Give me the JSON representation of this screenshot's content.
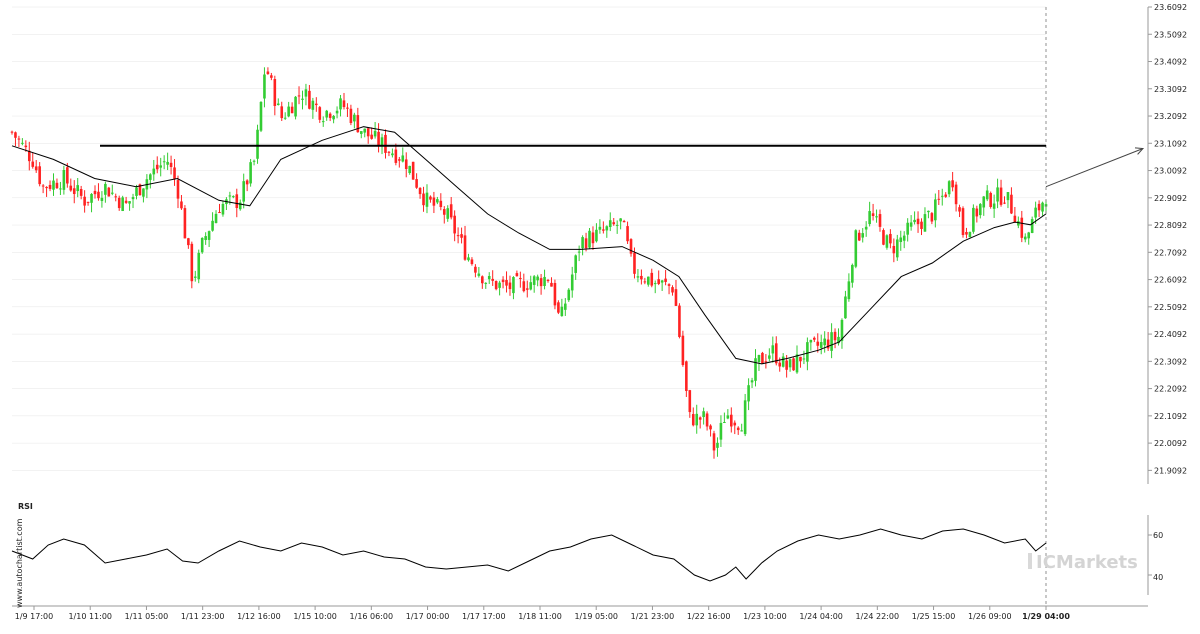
{
  "chart_data": {
    "type": "candlestick",
    "price_axis": {
      "min": 21.8592,
      "max": 23.6092,
      "ticks": [
        "23.6092",
        "23.5092",
        "23.4092",
        "23.3092",
        "23.2092",
        "23.1092",
        "23.0092",
        "22.9092",
        "22.8092",
        "22.7092",
        "22.6092",
        "22.5092",
        "22.4092",
        "22.3092",
        "22.2092",
        "22.1092",
        "22.0092",
        "21.9092"
      ]
    },
    "x_tick_labels": [
      "1/9 17:00",
      "1/10 11:00",
      "1/11 05:00",
      "1/11 23:00",
      "1/12 16:00",
      "1/15 10:00",
      "1/16 06:00",
      "1/17 00:00",
      "1/17 17:00",
      "1/18 11:00",
      "1/19 05:00",
      "1/21 23:00",
      "1/22 16:00",
      "1/23 10:00",
      "1/24 04:00",
      "1/24 22:00",
      "1/25 15:00",
      "1/26 09:00",
      "1/29 04:00"
    ],
    "current_time_label": "1/29 04:00",
    "resistance_level": 23.1,
    "projection": {
      "from": 22.95,
      "to": 23.09
    },
    "price_path": [
      [
        0,
        23.15
      ],
      [
        0.02,
        23.05
      ],
      [
        0.03,
        22.95
      ],
      [
        0.05,
        22.98
      ],
      [
        0.07,
        22.9
      ],
      [
        0.09,
        22.95
      ],
      [
        0.11,
        22.88
      ],
      [
        0.13,
        22.98
      ],
      [
        0.15,
        23.05
      ],
      [
        0.16,
        22.95
      ],
      [
        0.175,
        22.6
      ],
      [
        0.185,
        22.75
      ],
      [
        0.2,
        22.88
      ],
      [
        0.22,
        22.9
      ],
      [
        0.235,
        23.05
      ],
      [
        0.245,
        23.4
      ],
      [
        0.26,
        23.2
      ],
      [
        0.28,
        23.3
      ],
      [
        0.3,
        23.22
      ],
      [
        0.32,
        23.25
      ],
      [
        0.34,
        23.15
      ],
      [
        0.36,
        23.1
      ],
      [
        0.38,
        23.05
      ],
      [
        0.4,
        22.9
      ],
      [
        0.42,
        22.85
      ],
      [
        0.44,
        22.7
      ],
      [
        0.46,
        22.6
      ],
      [
        0.48,
        22.58
      ],
      [
        0.5,
        22.6
      ],
      [
        0.52,
        22.62
      ],
      [
        0.53,
        22.45
      ],
      [
        0.55,
        22.75
      ],
      [
        0.57,
        22.78
      ],
      [
        0.59,
        22.82
      ],
      [
        0.6,
        22.65
      ],
      [
        0.62,
        22.6
      ],
      [
        0.64,
        22.58
      ],
      [
        0.655,
        22.1
      ],
      [
        0.67,
        22.1
      ],
      [
        0.68,
        21.98
      ],
      [
        0.69,
        22.12
      ],
      [
        0.705,
        22.08
      ],
      [
        0.72,
        22.3
      ],
      [
        0.735,
        22.35
      ],
      [
        0.75,
        22.28
      ],
      [
        0.77,
        22.35
      ],
      [
        0.8,
        22.4
      ],
      [
        0.815,
        22.75
      ],
      [
        0.83,
        22.85
      ],
      [
        0.85,
        22.72
      ],
      [
        0.87,
        22.8
      ],
      [
        0.89,
        22.85
      ],
      [
        0.91,
        22.98
      ],
      [
        0.92,
        22.78
      ],
      [
        0.94,
        22.9
      ],
      [
        0.96,
        22.92
      ],
      [
        0.97,
        22.85
      ],
      [
        0.98,
        22.75
      ],
      [
        0.99,
        22.85
      ],
      [
        1.0,
        22.92
      ]
    ],
    "moving_average": [
      [
        0,
        23.1
      ],
      [
        0.04,
        23.05
      ],
      [
        0.08,
        22.98
      ],
      [
        0.12,
        22.95
      ],
      [
        0.16,
        22.98
      ],
      [
        0.2,
        22.9
      ],
      [
        0.23,
        22.88
      ],
      [
        0.26,
        23.05
      ],
      [
        0.3,
        23.12
      ],
      [
        0.34,
        23.17
      ],
      [
        0.37,
        23.15
      ],
      [
        0.4,
        23.05
      ],
      [
        0.43,
        22.95
      ],
      [
        0.46,
        22.85
      ],
      [
        0.49,
        22.78
      ],
      [
        0.52,
        22.72
      ],
      [
        0.55,
        22.72
      ],
      [
        0.59,
        22.73
      ],
      [
        0.62,
        22.68
      ],
      [
        0.645,
        22.62
      ],
      [
        0.67,
        22.48
      ],
      [
        0.7,
        22.32
      ],
      [
        0.725,
        22.3
      ],
      [
        0.75,
        22.32
      ],
      [
        0.78,
        22.35
      ],
      [
        0.8,
        22.38
      ],
      [
        0.83,
        22.5
      ],
      [
        0.86,
        22.62
      ],
      [
        0.89,
        22.67
      ],
      [
        0.92,
        22.75
      ],
      [
        0.95,
        22.8
      ],
      [
        0.97,
        22.82
      ],
      [
        0.985,
        22.81
      ],
      [
        1.0,
        22.85
      ]
    ],
    "rsi": {
      "label": "RSI",
      "levels": [
        "60",
        "40"
      ],
      "values": [
        [
          0,
          52
        ],
        [
          0.02,
          48
        ],
        [
          0.035,
          55
        ],
        [
          0.05,
          58
        ],
        [
          0.07,
          55
        ],
        [
          0.09,
          46
        ],
        [
          0.11,
          48
        ],
        [
          0.13,
          50
        ],
        [
          0.15,
          53
        ],
        [
          0.165,
          47
        ],
        [
          0.18,
          46
        ],
        [
          0.2,
          52
        ],
        [
          0.22,
          57
        ],
        [
          0.24,
          54
        ],
        [
          0.26,
          52
        ],
        [
          0.28,
          56
        ],
        [
          0.3,
          54
        ],
        [
          0.32,
          50
        ],
        [
          0.34,
          52
        ],
        [
          0.36,
          49
        ],
        [
          0.38,
          48
        ],
        [
          0.4,
          44
        ],
        [
          0.42,
          43
        ],
        [
          0.44,
          44
        ],
        [
          0.46,
          45
        ],
        [
          0.48,
          42
        ],
        [
          0.5,
          47
        ],
        [
          0.52,
          52
        ],
        [
          0.54,
          54
        ],
        [
          0.56,
          58
        ],
        [
          0.58,
          60
        ],
        [
          0.6,
          55
        ],
        [
          0.62,
          50
        ],
        [
          0.64,
          48
        ],
        [
          0.66,
          40
        ],
        [
          0.675,
          37
        ],
        [
          0.69,
          40
        ],
        [
          0.7,
          44
        ],
        [
          0.71,
          38
        ],
        [
          0.725,
          46
        ],
        [
          0.74,
          52
        ],
        [
          0.76,
          57
        ],
        [
          0.78,
          60
        ],
        [
          0.8,
          58
        ],
        [
          0.82,
          60
        ],
        [
          0.84,
          63
        ],
        [
          0.86,
          60
        ],
        [
          0.88,
          58
        ],
        [
          0.9,
          62
        ],
        [
          0.92,
          63
        ],
        [
          0.94,
          60
        ],
        [
          0.96,
          56
        ],
        [
          0.98,
          58
        ],
        [
          0.99,
          52
        ],
        [
          1.0,
          56
        ]
      ]
    },
    "side_watermark": "www.autochartist.com",
    "broker_watermark": "ICMarkets"
  },
  "colors": {
    "bull": "#33cc33",
    "bear": "#ff2222",
    "line": "#000000",
    "grid": "#e6e6e6",
    "axis": "#999999",
    "watermark": "#d9d9d9"
  }
}
